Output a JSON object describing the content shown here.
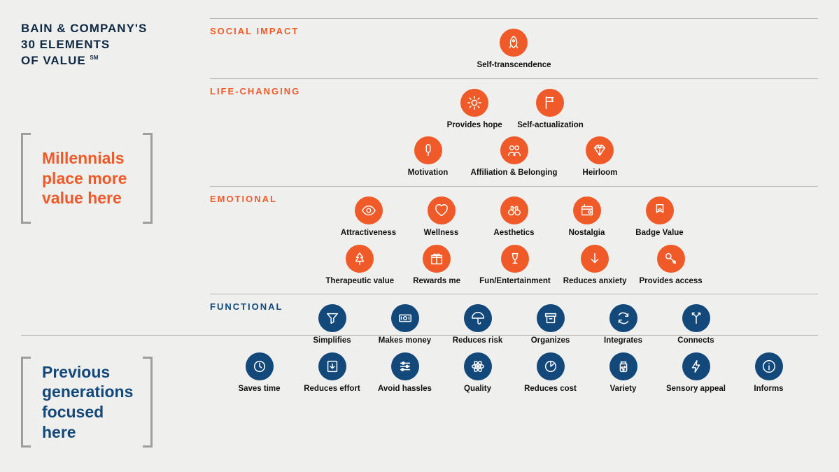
{
  "title_line1": "BAIN & COMPANY'S",
  "title_line2": "30 ELEMENTS",
  "title_line3": "OF VALUE",
  "title_sm": "SM",
  "callout_top": "Millennials place more value here",
  "callout_bottom": "Previous generations focused here",
  "colors": {
    "bg": "#efefed",
    "orange": "#ef5a28",
    "blue": "#12487a",
    "rule": "#b5b5b5",
    "bracket": "#9e9e9e",
    "text_dark": "#0f2a44"
  },
  "sections": [
    {
      "key": "social",
      "label": "SOCIAL IMPACT",
      "color": "orange",
      "rows": [
        [
          {
            "label": "Self-transcendence",
            "icon": "rocket"
          }
        ]
      ]
    },
    {
      "key": "life",
      "label": "LIFE-CHANGING",
      "color": "orange",
      "rows": [
        [
          {
            "label": "Provides hope",
            "icon": "sun"
          },
          {
            "label": "Self-actualization",
            "icon": "flag"
          }
        ],
        [
          {
            "label": "Motivation",
            "icon": "popsicle"
          },
          {
            "label": "Affiliation & Belonging",
            "icon": "people"
          },
          {
            "label": "Heirloom",
            "icon": "diamond"
          }
        ]
      ]
    },
    {
      "key": "emotional",
      "label": "EMOTIONAL",
      "color": "orange",
      "last_orange": true,
      "rows": [
        [
          {
            "label": "Attractiveness",
            "icon": "eye"
          },
          {
            "label": "Wellness",
            "icon": "heart"
          },
          {
            "label": "Aesthetics",
            "icon": "binoculars"
          },
          {
            "label": "Nostalgia",
            "icon": "radio"
          },
          {
            "label": "Badge Value",
            "icon": "ribbon"
          }
        ],
        [
          {
            "label": "Therapeutic value",
            "icon": "tree"
          },
          {
            "label": "Rewards me",
            "icon": "gift"
          },
          {
            "label": "Fun/Entertainment",
            "icon": "wine"
          },
          {
            "label": "Reduces anxiety",
            "icon": "arrow-down"
          },
          {
            "label": "Provides access",
            "icon": "key"
          }
        ]
      ]
    },
    {
      "key": "functional",
      "label": "FUNCTIONAL",
      "color": "blue",
      "rows": [
        [
          {
            "label": "Simplifies",
            "icon": "funnel"
          },
          {
            "label": "Makes money",
            "icon": "cash"
          },
          {
            "label": "Reduces risk",
            "icon": "umbrella"
          },
          {
            "label": "Organizes",
            "icon": "archive"
          },
          {
            "label": "Integrates",
            "icon": "cycle"
          },
          {
            "label": "Connects",
            "icon": "merge"
          }
        ],
        [
          {
            "label": "Saves time",
            "icon": "clock"
          },
          {
            "label": "Reduces effort",
            "icon": "download"
          },
          {
            "label": "Avoid hassles",
            "icon": "sliders"
          },
          {
            "label": "Quality",
            "icon": "atom"
          },
          {
            "label": "Reduces cost",
            "icon": "pie"
          },
          {
            "label": "Variety",
            "icon": "jar"
          },
          {
            "label": "Sensory appeal",
            "icon": "bolt"
          },
          {
            "label": "Informs",
            "icon": "info"
          }
        ]
      ]
    }
  ]
}
